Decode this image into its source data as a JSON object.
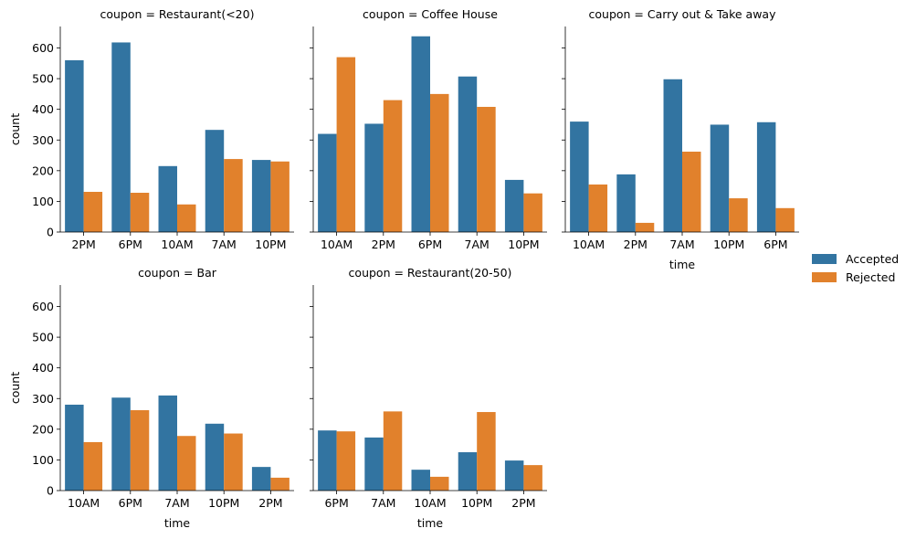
{
  "chart_data": {
    "type": "bar",
    "ylim": [
      0,
      670
    ],
    "yticks": [
      0,
      100,
      200,
      300,
      400,
      500,
      600
    ],
    "xlabel": "time",
    "ylabel": "count",
    "grid": false,
    "legend_placement": "right",
    "series_names": [
      "Accepted",
      "Rejected"
    ],
    "colors": {
      "Accepted": "#3274a1",
      "Rejected": "#e1812c"
    },
    "panels": [
      {
        "title": "coupon = Restaurant(<20)",
        "categories": [
          "2PM",
          "6PM",
          "10AM",
          "7AM",
          "10PM"
        ],
        "series": [
          {
            "name": "Accepted",
            "values": [
              560,
              618,
              215,
              333,
              235
            ]
          },
          {
            "name": "Rejected",
            "values": [
              131,
              128,
              90,
              238,
              230
            ]
          }
        ]
      },
      {
        "title": "coupon = Coffee House",
        "categories": [
          "10AM",
          "2PM",
          "6PM",
          "7AM",
          "10PM"
        ],
        "series": [
          {
            "name": "Accepted",
            "values": [
              320,
              353,
              638,
              507,
              170
            ]
          },
          {
            "name": "Rejected",
            "values": [
              570,
              430,
              450,
              408,
              126
            ]
          }
        ]
      },
      {
        "title": "coupon = Carry out & Take away",
        "categories": [
          "10AM",
          "2PM",
          "7AM",
          "10PM",
          "6PM"
        ],
        "series": [
          {
            "name": "Accepted",
            "values": [
              360,
              188,
              498,
              350,
              358
            ]
          },
          {
            "name": "Rejected",
            "values": [
              155,
              30,
              262,
              110,
              78
            ]
          }
        ]
      },
      {
        "title": "coupon = Bar",
        "categories": [
          "10AM",
          "6PM",
          "7AM",
          "10PM",
          "2PM"
        ],
        "series": [
          {
            "name": "Accepted",
            "values": [
              280,
              303,
              310,
              218,
              77
            ]
          },
          {
            "name": "Rejected",
            "values": [
              158,
              262,
              178,
              186,
              42
            ]
          }
        ]
      },
      {
        "title": "coupon = Restaurant(20-50)",
        "categories": [
          "6PM",
          "7AM",
          "10AM",
          "10PM",
          "2PM"
        ],
        "series": [
          {
            "name": "Accepted",
            "values": [
              196,
              173,
              68,
              125,
              98
            ]
          },
          {
            "name": "Rejected",
            "values": [
              193,
              258,
              45,
              256,
              83
            ]
          }
        ]
      }
    ]
  }
}
